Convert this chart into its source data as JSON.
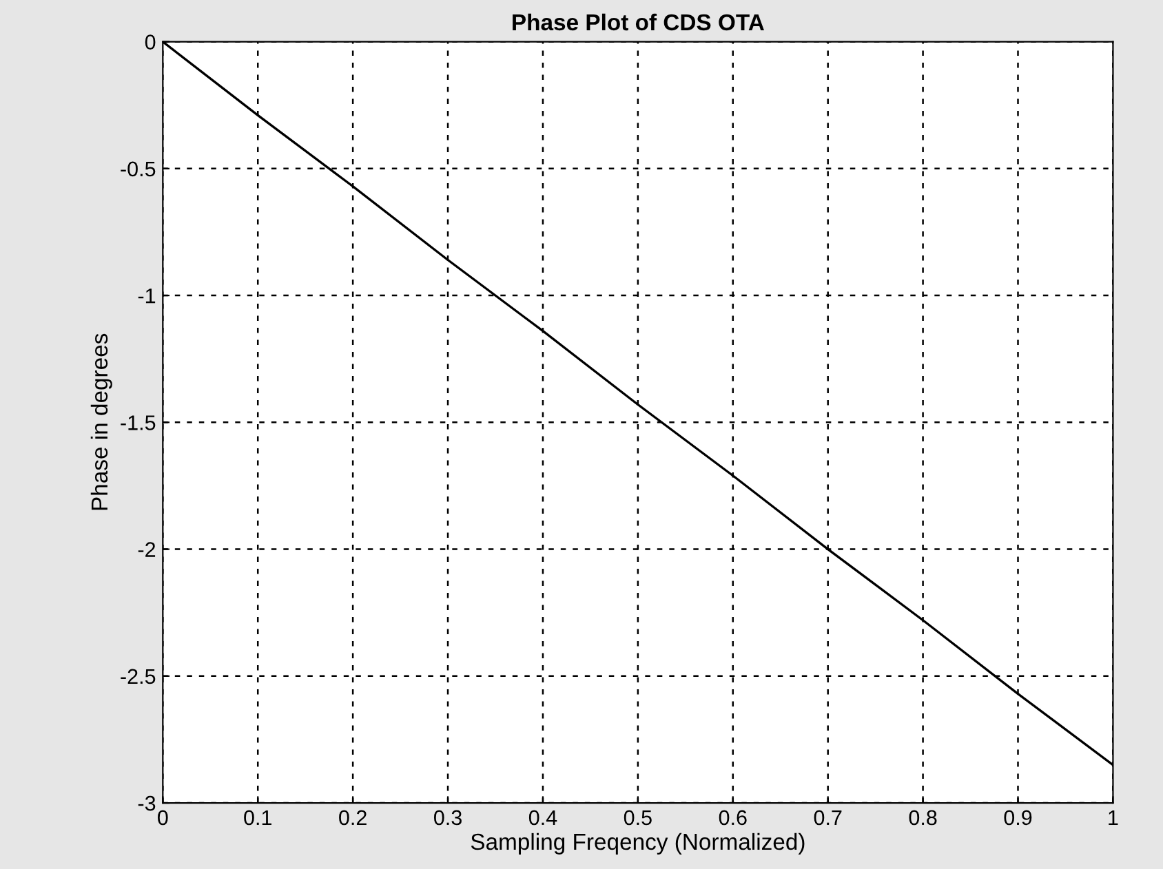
{
  "chart_data": {
    "type": "line",
    "title": "Phase Plot of CDS OTA",
    "xlabel": "Sampling Freqency (Normalized)",
    "ylabel": "Phase in degrees",
    "x": [
      0,
      0.1,
      0.2,
      0.3,
      0.4,
      0.5,
      0.6,
      0.7,
      0.8,
      0.9,
      1
    ],
    "series": [
      {
        "color": "#000000",
        "values": [
          0,
          -0.29,
          -0.57,
          -0.86,
          -1.14,
          -1.43,
          -1.71,
          -2.0,
          -2.28,
          -2.57,
          -2.85
        ]
      }
    ],
    "xlim": [
      0,
      1
    ],
    "ylim": [
      -3,
      0
    ],
    "xticks": [
      0,
      0.1,
      0.2,
      0.3,
      0.4,
      0.5,
      0.6,
      0.7,
      0.8,
      0.9,
      1
    ],
    "yticks": [
      0,
      -0.5,
      -1,
      -1.5,
      -2,
      -2.5,
      -3
    ],
    "grid": true,
    "marker": "none",
    "line_style": "solid"
  }
}
